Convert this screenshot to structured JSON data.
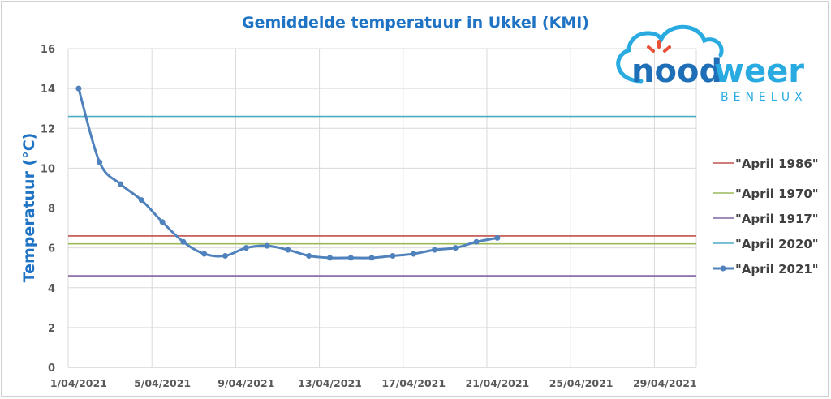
{
  "chart_data": {
    "type": "line",
    "title": "Gemiddelde temperatuur in Ukkel (KMI)",
    "xlabel": "",
    "ylabel": "Temperatuur (°C)",
    "ylim": [
      0,
      16
    ],
    "yticks": [
      0,
      2,
      4,
      6,
      8,
      10,
      12,
      14,
      16
    ],
    "xrange_days": [
      1,
      30
    ],
    "xtick_days": [
      1,
      5,
      9,
      13,
      17,
      21,
      25,
      29
    ],
    "xtick_labels": [
      "1/04/2021",
      "5/04/2021",
      "9/04/2021",
      "13/04/2021",
      "17/04/2021",
      "21/04/2021",
      "25/04/2021",
      "29/04/2021"
    ],
    "grid": true,
    "legend_position": "right",
    "series": [
      {
        "name": "\"April 1986\"",
        "color": "#c0504d",
        "constant": 6.6
      },
      {
        "name": "\"April 1970\"",
        "color": "#9bbb59",
        "constant": 6.2
      },
      {
        "name": "\"April 1917\"",
        "color": "#8064a2",
        "constant": 4.6
      },
      {
        "name": "\"April 2020\"",
        "color": "#4bacc6",
        "constant": 12.6
      },
      {
        "name": "\"April 2021\"",
        "color": "#4f81bd",
        "markers": true,
        "x": [
          1,
          2,
          3,
          4,
          5,
          6,
          7,
          8,
          9,
          10,
          11,
          12,
          13,
          14,
          15,
          16,
          17,
          18,
          19,
          20,
          21
        ],
        "values": [
          14.0,
          10.3,
          9.2,
          8.4,
          7.3,
          6.3,
          5.7,
          5.6,
          6.0,
          6.1,
          5.9,
          5.6,
          5.5,
          5.5,
          5.5,
          5.6,
          5.7,
          5.9,
          6.0,
          6.3,
          6.5
        ]
      }
    ]
  },
  "logo": {
    "word_dark": "nood",
    "word_light": "weer",
    "sub": "BENELUX"
  },
  "colors": {
    "title": "#1f73c4",
    "axis_text": "#595959",
    "grid": "#d9d9d9"
  }
}
